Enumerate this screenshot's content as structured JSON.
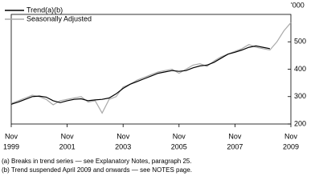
{
  "chart_data": {
    "type": "line",
    "x": [
      "Nov 1999",
      "Feb 2000",
      "May 2000",
      "Aug 2000",
      "Nov 2000",
      "Feb 2001",
      "May 2001",
      "Aug 2001",
      "Nov 2001",
      "Feb 2002",
      "May 2002",
      "Aug 2002",
      "Nov 2002",
      "Feb 2003",
      "May 2003",
      "Aug 2003",
      "Nov 2003",
      "Feb 2004",
      "May 2004",
      "Aug 2004",
      "Nov 2004",
      "Feb 2005",
      "May 2005",
      "Aug 2005",
      "Nov 2005",
      "Feb 2006",
      "May 2006",
      "Aug 2006",
      "Nov 2006",
      "Feb 2007",
      "May 2007",
      "Aug 2007",
      "Nov 2007",
      "Feb 2008",
      "May 2008",
      "Aug 2008",
      "Nov 2008",
      "Feb 2009",
      "May 2009",
      "Aug 2009",
      "Nov 2009"
    ],
    "series": [
      {
        "name": "Trend(a)(b)",
        "color": "#000000",
        "values": [
          272,
          280,
          290,
          300,
          302,
          298,
          285,
          278,
          285,
          290,
          292,
          285,
          288,
          290,
          295,
          310,
          330,
          345,
          355,
          365,
          375,
          385,
          390,
          395,
          392,
          395,
          405,
          412,
          415,
          425,
          440,
          455,
          462,
          470,
          480,
          485,
          480,
          475,
          null,
          null,
          null
        ]
      },
      {
        "name": "Seasonally Adjusted",
        "color": "#aaaaaa",
        "values": [
          275,
          285,
          295,
          305,
          300,
          290,
          270,
          285,
          290,
          295,
          300,
          280,
          285,
          240,
          290,
          300,
          335,
          345,
          360,
          370,
          380,
          390,
          395,
          400,
          385,
          400,
          415,
          420,
          410,
          430,
          445,
          455,
          465,
          475,
          490,
          480,
          475,
          470,
          500,
          540,
          570
        ]
      }
    ],
    "y_unit": "'000",
    "ylim": [
      200,
      600
    ],
    "yticks": [
      200,
      300,
      400,
      500
    ],
    "xticks": [
      {
        "month": "Nov",
        "year": "1999"
      },
      {
        "month": "Nov",
        "year": "2001"
      },
      {
        "month": "Nov",
        "year": "2003"
      },
      {
        "month": "Nov",
        "year": "2005"
      },
      {
        "month": "Nov",
        "year": "2007"
      },
      {
        "month": "Nov",
        "year": "2009"
      }
    ],
    "notes": [
      "(a) Breaks in trend series — see Explanatory Notes, paragraph 25.",
      "(b) Trend suspended April 2009 and onwards — see NOTES page."
    ]
  }
}
